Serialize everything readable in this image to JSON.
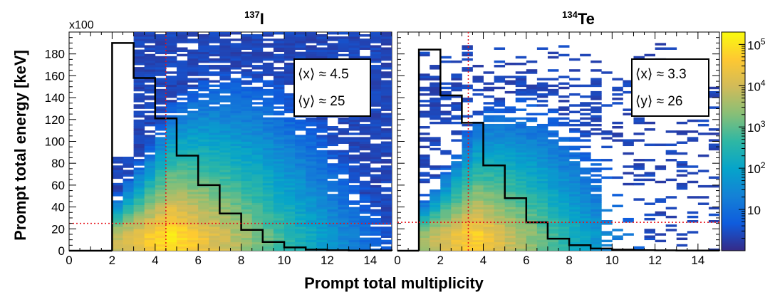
{
  "chart_data": {
    "type": "heatmap",
    "xlabel": "Prompt total multiplicity",
    "ylabel": "Prompt total energy [keV]",
    "y_multiplier_label": "x100",
    "xlim": [
      0,
      15
    ],
    "ylim": [
      0,
      200
    ],
    "x_ticks": [
      "0",
      "2",
      "4",
      "6",
      "8",
      "10",
      "12",
      "14"
    ],
    "y_ticks": [
      "0",
      "20",
      "40",
      "60",
      "80",
      "100",
      "120",
      "140",
      "160",
      "180"
    ],
    "colorbar": {
      "scale": "log",
      "tick_labels": [
        "10",
        "10^2",
        "10^3",
        "10^4",
        "10^5"
      ],
      "colors": [
        "#352a87",
        "#0f5cdd",
        "#1481d6",
        "#06a4ca",
        "#2eb7a4",
        "#87bf77",
        "#d1bb59",
        "#fec832",
        "#f9fb0e"
      ]
    },
    "panels": [
      {
        "title_mass": "137",
        "title_element": "I",
        "mean_x_label": "⟨x⟩ ≈ 4.5",
        "mean_y_label": "⟨y⟩ ≈ 25",
        "mean_x": 4.5,
        "mean_y": 25,
        "heatmap_x_range": [
          2,
          15
        ],
        "heatmap_y_max": 200,
        "histogram": {
          "bin_edges": [
            2,
            3,
            4,
            5,
            6,
            7,
            8,
            9,
            10,
            11,
            12,
            13,
            14,
            15
          ],
          "values": [
            190,
            158,
            121,
            87,
            60,
            34,
            19,
            8,
            3,
            1,
            0.4,
            0.2,
            0.1
          ]
        }
      },
      {
        "title_mass": "134",
        "title_element": "Te",
        "mean_x_label": "⟨x⟩ ≈ 3.3",
        "mean_y_label": "⟨y⟩ ≈ 26",
        "mean_x": 3.3,
        "mean_y": 26,
        "heatmap_x_range": [
          1,
          15
        ],
        "heatmap_y_max": 190,
        "histogram": {
          "bin_edges": [
            1,
            2,
            3,
            4,
            5,
            6,
            7,
            8,
            9,
            10,
            11,
            12,
            13,
            14,
            15
          ],
          "values": [
            184,
            142,
            117,
            78,
            48,
            26,
            11,
            5,
            2,
            1,
            0.5,
            0.3,
            0.1,
            0.1
          ]
        }
      }
    ]
  }
}
